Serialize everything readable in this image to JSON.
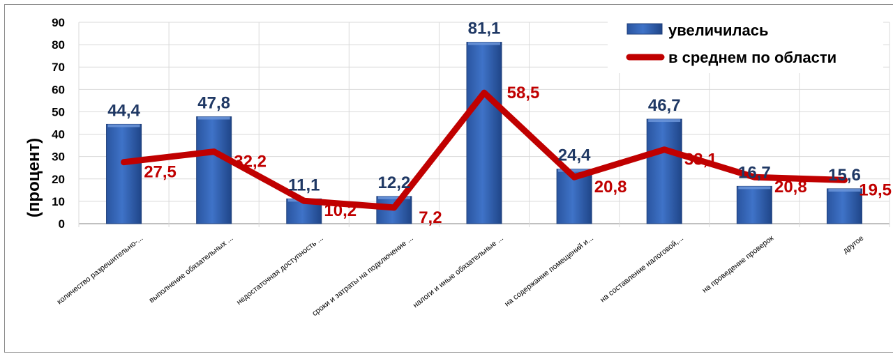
{
  "chart_data": {
    "type": "bar",
    "ylabel": "(процент)",
    "ylim": [
      0,
      90
    ],
    "yticks": [
      0,
      10,
      20,
      30,
      40,
      50,
      60,
      70,
      80,
      90
    ],
    "grid": true,
    "legend_position": "top-right",
    "categories": [
      "количество  разрешительно-...",
      "выполнение  обязательных ...",
      "недостаточная  доступность ...",
      "сроки и затраты  на подключение ...",
      "налоги и иные обязательные ...",
      "на содержание  помещений  и...",
      "на составление  налоговой,...",
      "на проведение  проверок",
      "другое"
    ],
    "series": [
      {
        "name": "увеличилась",
        "type": "bar",
        "color": "#2f5faf",
        "values": [
          44.4,
          47.8,
          11.1,
          12.2,
          81.1,
          24.4,
          46.7,
          16.7,
          15.6
        ],
        "labels": [
          "44,4",
          "47,8",
          "11,1",
          "12,2",
          "81,1",
          "24,4",
          "46,7",
          "16,7",
          "15,6"
        ]
      },
      {
        "name": "в среднем по области",
        "type": "line",
        "color": "#c00000",
        "values": [
          27.5,
          32.2,
          10.2,
          7.2,
          58.5,
          20.8,
          33.1,
          20.8,
          19.5
        ],
        "labels": [
          "27,5",
          "32,2",
          "10,2",
          "7,2",
          "58,5",
          "20,8",
          "33,1",
          "20,8",
          "19,5"
        ]
      }
    ]
  }
}
